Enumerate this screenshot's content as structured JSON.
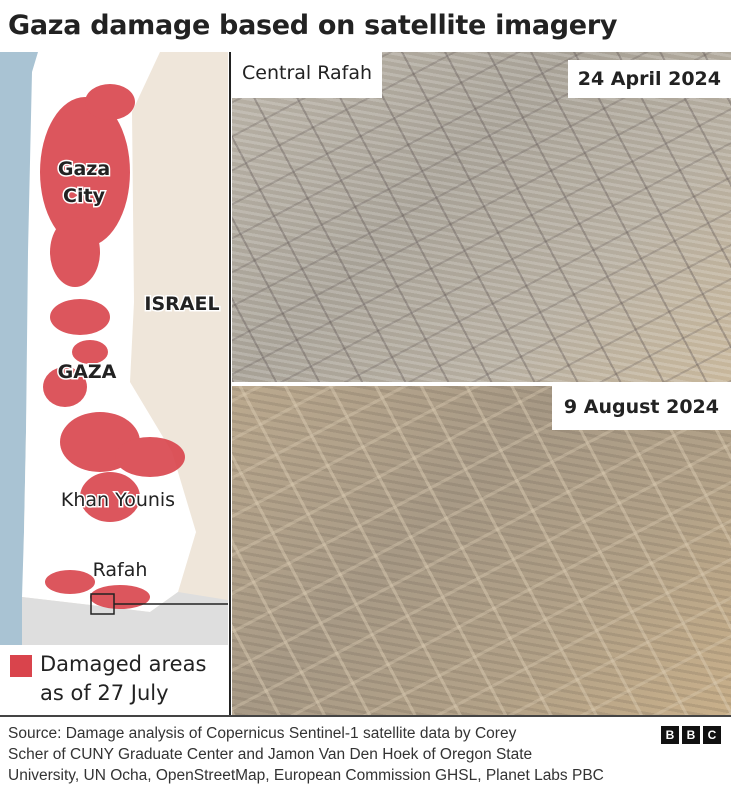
{
  "title": "Gaza damage based on satellite imagery",
  "map": {
    "labels": {
      "gaza_city_1": "Gaza",
      "gaza_city_2": "City",
      "gaza": "GAZA",
      "israel": "ISRAEL",
      "khan_younis": "Khan Younis",
      "rafah": "Rafah"
    },
    "colors": {
      "sea": "#a9c3d3",
      "israel": "#efe6da",
      "gaza": "#ffffff",
      "egypt": "#dedede",
      "damage": "#d9444c"
    }
  },
  "legend": {
    "label": "Damaged areas as of 27 July",
    "color": "#d9444c"
  },
  "images": {
    "location": "Central Rafah",
    "before_date": "24 April 2024",
    "after_date": "9 August 2024"
  },
  "source": {
    "line1": "Source: Damage analysis of Copernicus Sentinel-1 satellite data by Corey",
    "line2": "Scher of CUNY Graduate Center and Jamon Van Den Hoek of Oregon State",
    "line3": "University, UN Ocha, OpenStreetMap, European Commission GHSL, Planet Labs PBC"
  },
  "logo": {
    "letters": [
      "B",
      "B",
      "C"
    ]
  }
}
